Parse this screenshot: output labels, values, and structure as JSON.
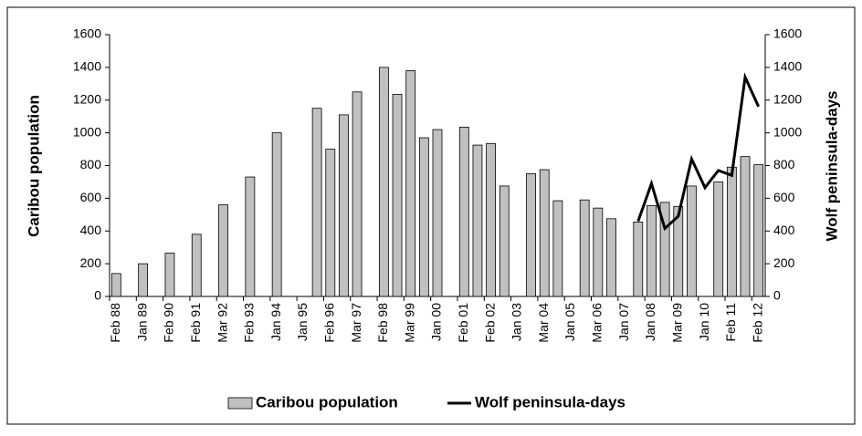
{
  "chart_data": {
    "type": "bar",
    "categories": [
      "Feb 88",
      null,
      "Jan 89",
      null,
      "Feb 90",
      null,
      "Feb 91",
      null,
      "Mar 92",
      null,
      "Feb 93",
      null,
      "Jan 94",
      null,
      "Jan 95",
      null,
      "Feb 96",
      null,
      "Mar 97",
      null,
      "Feb 98",
      null,
      "Mar 99",
      null,
      "Jan 00",
      null,
      "Feb 01",
      null,
      "Feb 02",
      null,
      "Jan 03",
      null,
      "Mar 04",
      null,
      "Jan 05",
      null,
      "Mar 06",
      null,
      "Jan 07",
      null,
      "Jan 08",
      null,
      "Mar 09",
      null,
      "Jan 10",
      null,
      "Feb 11",
      null,
      "Feb 12"
    ],
    "series": [
      {
        "name": "Caribou population",
        "type": "bar",
        "color": "#c0c0c0",
        "values": [
          140,
          null,
          200,
          null,
          265,
          null,
          380,
          null,
          560,
          null,
          730,
          null,
          1000,
          null,
          null,
          1150,
          900,
          1110,
          1250,
          null,
          1400,
          1235,
          1380,
          970,
          1020,
          null,
          1035,
          925,
          935,
          675,
          null,
          750,
          775,
          585,
          null,
          590,
          540,
          475,
          null,
          455,
          555,
          575,
          550,
          675,
          null,
          700,
          790,
          855,
          805
        ]
      },
      {
        "name": "Wolf peninsula-days",
        "type": "line",
        "axis": "y2",
        "color": "#000000",
        "values": [
          null,
          null,
          null,
          null,
          null,
          null,
          null,
          null,
          null,
          null,
          null,
          null,
          null,
          null,
          null,
          null,
          null,
          null,
          null,
          null,
          null,
          null,
          null,
          null,
          null,
          null,
          null,
          null,
          null,
          null,
          null,
          null,
          null,
          null,
          null,
          null,
          null,
          null,
          null,
          460,
          690,
          415,
          490,
          840,
          665,
          770,
          740,
          1340,
          1160
        ]
      }
    ],
    "ylabel": "Caribou population",
    "y2label": "Wolf peninsula-days",
    "ylim": [
      0,
      1600
    ],
    "yticks": [
      0,
      200,
      400,
      600,
      800,
      1000,
      1200,
      1400,
      1600
    ],
    "y2lim": [
      0,
      1600
    ],
    "y2ticks": [
      0,
      200,
      400,
      600,
      800,
      1000,
      1200,
      1400,
      1600
    ],
    "legend": "bottom"
  }
}
